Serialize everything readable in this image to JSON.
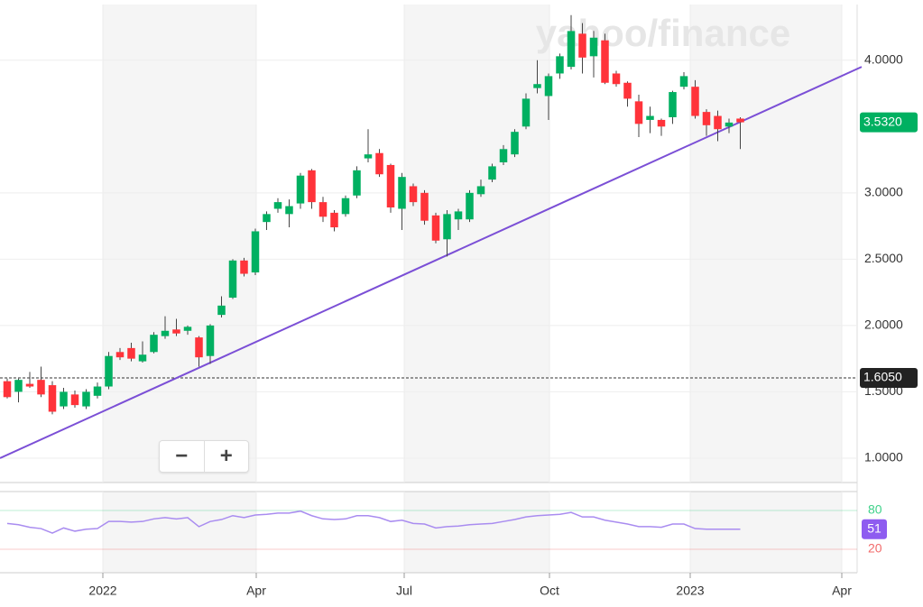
{
  "chart_data": {
    "type": "candlestick",
    "watermark": "yahoo/finance",
    "zoom_out": "−",
    "zoom_in": "+",
    "up_color": "#00b061",
    "down_color": "#ff333a",
    "x": [
      0,
      1,
      2,
      3,
      4,
      5,
      6,
      7,
      8,
      9,
      10,
      11,
      12,
      13,
      14,
      15,
      16,
      17,
      18,
      19,
      20,
      21,
      22,
      23,
      24,
      25,
      26,
      27,
      28,
      29,
      30,
      31,
      32,
      33,
      34,
      35,
      36,
      37,
      38,
      39,
      40,
      41,
      42,
      43,
      44,
      45,
      46,
      47,
      48,
      49,
      50,
      51,
      52,
      53,
      54,
      55,
      56,
      57,
      58,
      59,
      60,
      61,
      62,
      63,
      64,
      65
    ],
    "open": [
      1.58,
      1.5,
      1.56,
      1.59,
      1.55,
      1.39,
      1.48,
      1.39,
      1.47,
      1.54,
      1.8,
      1.83,
      1.73,
      1.8,
      1.92,
      1.97,
      1.96,
      1.91,
      1.77,
      2.08,
      2.21,
      2.49,
      2.4,
      2.78,
      2.88,
      2.84,
      2.92,
      3.17,
      2.93,
      2.85,
      2.84,
      2.98,
      3.26,
      3.3,
      3.21,
      2.88,
      3.05,
      3.0,
      2.83,
      2.65,
      2.8,
      2.8,
      2.99,
      3.1,
      3.23,
      3.29,
      3.5,
      3.79,
      3.73,
      3.9,
      3.95,
      4.2,
      4.03,
      4.15,
      3.9,
      3.83,
      3.69,
      3.55,
      3.55,
      3.57,
      3.8,
      3.8,
      3.61,
      3.58,
      3.5,
      3.56
    ],
    "high": [
      1.6,
      1.6,
      1.65,
      1.69,
      1.58,
      1.53,
      1.51,
      1.52,
      1.57,
      1.8,
      1.83,
      1.87,
      1.88,
      1.95,
      2.07,
      2.05,
      2.0,
      1.92,
      2.01,
      2.22,
      2.5,
      2.51,
      2.73,
      2.86,
      2.96,
      2.95,
      3.15,
      3.18,
      2.97,
      2.87,
      2.98,
      3.2,
      3.48,
      3.33,
      3.22,
      3.15,
      3.07,
      3.02,
      2.85,
      2.87,
      2.88,
      3.02,
      3.1,
      3.22,
      3.36,
      3.48,
      3.75,
      4.0,
      3.9,
      4.05,
      4.34,
      4.28,
      4.22,
      4.2,
      3.92,
      3.84,
      3.74,
      3.65,
      3.56,
      3.77,
      3.91,
      3.85,
      3.63,
      3.62,
      3.56,
      3.57
    ],
    "low": [
      1.45,
      1.42,
      1.53,
      1.46,
      1.33,
      1.37,
      1.38,
      1.37,
      1.45,
      1.52,
      1.74,
      1.73,
      1.72,
      1.79,
      1.9,
      1.92,
      1.93,
      1.69,
      1.71,
      2.06,
      2.2,
      2.37,
      2.38,
      2.72,
      2.85,
      2.74,
      2.88,
      2.88,
      2.78,
      2.71,
      2.82,
      2.96,
      3.23,
      3.12,
      2.85,
      2.72,
      2.9,
      2.76,
      2.62,
      2.52,
      2.72,
      2.78,
      2.97,
      3.08,
      3.21,
      3.27,
      3.48,
      3.75,
      3.55,
      3.86,
      3.93,
      3.9,
      3.87,
      3.82,
      3.8,
      3.65,
      3.42,
      3.45,
      3.43,
      3.52,
      3.78,
      3.56,
      3.43,
      3.39,
      3.45,
      3.33
    ],
    "close": [
      1.46,
      1.59,
      1.54,
      1.48,
      1.35,
      1.5,
      1.4,
      1.5,
      1.54,
      1.77,
      1.76,
      1.75,
      1.78,
      1.93,
      1.96,
      1.94,
      1.99,
      1.76,
      2.0,
      2.15,
      2.49,
      2.39,
      2.71,
      2.84,
      2.93,
      2.9,
      3.13,
      2.93,
      2.82,
      2.74,
      2.96,
      3.17,
      3.29,
      3.14,
      2.89,
      3.12,
      2.93,
      2.79,
      2.64,
      2.84,
      2.86,
      3.0,
      3.05,
      3.2,
      3.33,
      3.46,
      3.71,
      3.82,
      3.88,
      4.03,
      4.22,
      4.02,
      4.17,
      3.83,
      3.82,
      3.71,
      3.52,
      3.58,
      3.5,
      3.76,
      3.88,
      3.58,
      3.51,
      3.48,
      3.53,
      3.532
    ],
    "xlim": [
      -0.64,
      75.36
    ],
    "xticks": [
      {
        "value": 8.48,
        "label": "2022"
      },
      {
        "value": 22.08,
        "label": "Apr"
      },
      {
        "value": 35.2,
        "label": "Jul"
      },
      {
        "value": 48.08,
        "label": "Oct"
      },
      {
        "value": 60.56,
        "label": "2023"
      },
      {
        "value": 74.0,
        "label": "Apr"
      }
    ],
    "ylim": [
      0.816,
      4.42
    ],
    "yticks": [
      {
        "value": 1,
        "label": "1.0000"
      },
      {
        "value": 1.5,
        "label": "1.5000"
      },
      {
        "value": 2,
        "label": "2.0000"
      },
      {
        "value": 2.5,
        "label": "2.5000"
      },
      {
        "value": 3,
        "label": "3.0000"
      },
      {
        "value": 4,
        "label": "4.0000"
      }
    ],
    "grid": true,
    "current_price": {
      "value": 3.532,
      "label": "3.5320"
    },
    "reference_price": {
      "value": 1.605,
      "label": "1.6050"
    },
    "trendline": {
      "color": "#7b4fd6",
      "x": [
        -0.64,
        75.76
      ],
      "y": [
        1.0,
        3.95
      ]
    },
    "rsi": {
      "color": "#a98cf0",
      "values": [
        60,
        58,
        54,
        52,
        45,
        53,
        48,
        51,
        52,
        63,
        63,
        62,
        63,
        67,
        69,
        67,
        69,
        55,
        63,
        66,
        72,
        69,
        73,
        74,
        76,
        76,
        79,
        72,
        67,
        66,
        67,
        72,
        72,
        69,
        63,
        65,
        60,
        59,
        53,
        55,
        56,
        58,
        59,
        60,
        63,
        66,
        70,
        72,
        73,
        74,
        77,
        70,
        70,
        65,
        62,
        59,
        55,
        55,
        54,
        59,
        59,
        52,
        51,
        51,
        51,
        51
      ],
      "ylim": [
        -16.3,
        109.3
      ],
      "yticks": [
        80,
        20
      ],
      "tick_colors": [
        "#3fd28a",
        "#f26b6b"
      ]
    }
  }
}
